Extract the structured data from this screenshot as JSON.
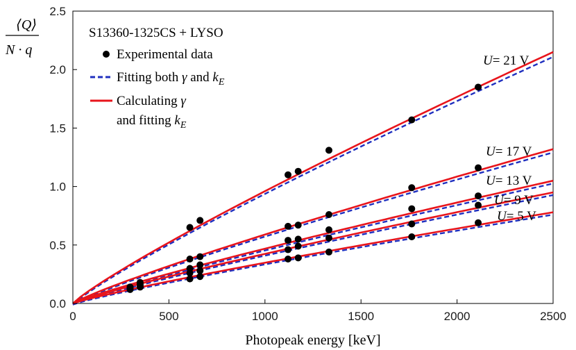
{
  "chart_data": {
    "type": "scatter",
    "title": "S13360-1325CS + LYSO",
    "xlabel": "Photopeak energy [keV]",
    "ylabel": "⟨Q⟩ / N · q",
    "xlim": [
      0,
      2500
    ],
    "ylim": [
      0,
      2.5
    ],
    "xticks": [
      0,
      500,
      1000,
      1500,
      2000,
      2500
    ],
    "yticks": [
      0,
      0.5,
      1.0,
      1.5,
      2.0,
      2.5
    ],
    "xtick_labels": [
      "0",
      "500",
      "1000",
      "1500",
      "2000",
      "2500"
    ],
    "ytick_labels": [
      "0.0",
      "0.5",
      "1.0",
      "1.5",
      "2.0",
      "2.5"
    ],
    "legend": [
      {
        "kind": "marker",
        "text": "Experimental data"
      },
      {
        "kind": "dashed",
        "color": "#1f2fbf",
        "text_prefix": "Fitting both ",
        "sym1": "γ",
        "mid": " and ",
        "sym2": "k",
        "sub": "E"
      },
      {
        "kind": "solid",
        "color": "#e8141b",
        "line1_prefix": "Calculating ",
        "line1_sym": "γ",
        "line2_prefix": "and fitting ",
        "sym": "k",
        "sub": "E"
      }
    ],
    "colors": {
      "fit": "#1f2fbf",
      "calc": "#e8141b",
      "data": "#000000"
    },
    "series": [
      {
        "name": "U = 21 V",
        "label_var": "U",
        "label_rest": "= 21 V",
        "x": [
          298,
          350,
          609,
          662,
          1120,
          1173,
          1333,
          1764,
          2110
        ],
        "y": [
          0.14,
          0.18,
          0.65,
          0.71,
          1.1,
          1.13,
          1.31,
          1.57,
          1.85
        ],
        "curve_end": 2.15
      },
      {
        "name": "U = 17 V",
        "label_var": "U",
        "label_rest": "= 17 V",
        "x": [
          298,
          350,
          609,
          662,
          1120,
          1173,
          1333,
          1764,
          2110
        ],
        "y": [
          0.14,
          0.17,
          0.38,
          0.4,
          0.66,
          0.67,
          0.76,
          0.99,
          1.16
        ],
        "curve_end": 1.32
      },
      {
        "name": "U = 13 V",
        "label_var": "U",
        "label_rest": "= 13 V",
        "x": [
          298,
          350,
          609,
          662,
          1120,
          1173,
          1333,
          1764,
          2110
        ],
        "y": [
          0.13,
          0.16,
          0.3,
          0.33,
          0.54,
          0.55,
          0.63,
          0.81,
          0.92
        ],
        "curve_end": 1.05
      },
      {
        "name": "U = 9 V",
        "label_var": "U",
        "label_rest": "= 9 V",
        "x": [
          298,
          350,
          609,
          662,
          1120,
          1173,
          1333,
          1764,
          2110
        ],
        "y": [
          0.12,
          0.15,
          0.26,
          0.28,
          0.46,
          0.49,
          0.56,
          0.68,
          0.84
        ],
        "curve_end": 0.95
      },
      {
        "name": "U = 5 V",
        "label_var": "U",
        "label_rest": "= 5 V",
        "x": [
          298,
          350,
          609,
          662,
          1120,
          1173,
          1333,
          1764,
          2110
        ],
        "y": [
          0.12,
          0.14,
          0.21,
          0.23,
          0.38,
          0.39,
          0.44,
          0.57,
          0.69
        ],
        "curve_end": 0.78
      }
    ]
  }
}
